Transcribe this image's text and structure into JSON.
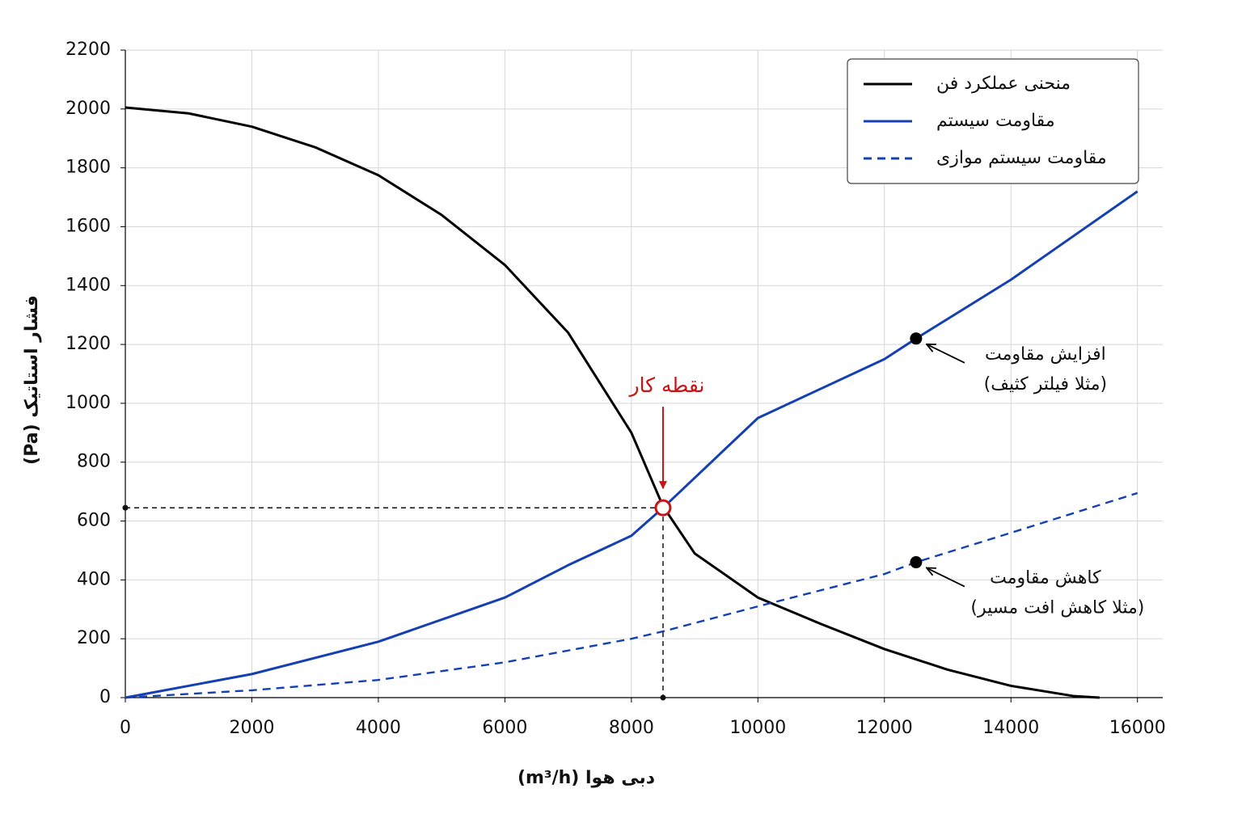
{
  "chart_data": {
    "type": "line",
    "xlabel": "دبی هوا (m³/h)",
    "ylabel": "فشار استاتیک (Pa)",
    "xlim": [
      0,
      16400
    ],
    "ylim": [
      0,
      2200
    ],
    "xticks": [
      0,
      2000,
      4000,
      6000,
      8000,
      10000,
      12000,
      14000,
      16000
    ],
    "yticks": [
      0,
      200,
      400,
      600,
      800,
      1000,
      1200,
      1400,
      1600,
      1800,
      2000,
      2200
    ],
    "grid": true,
    "legend": "upper right",
    "series": [
      {
        "name": "منحنی عملکرد فن",
        "color": "#000000",
        "style": "solid",
        "x": [
          0,
          1000,
          2000,
          3000,
          4000,
          5000,
          6000,
          7000,
          8000,
          8500,
          9000,
          10000,
          11000,
          12000,
          13000,
          14000,
          15000,
          15400
        ],
        "values": [
          2005,
          1985,
          1940,
          1870,
          1775,
          1640,
          1470,
          1240,
          900,
          650,
          490,
          340,
          250,
          165,
          95,
          40,
          5,
          0
        ]
      },
      {
        "name": "مقاومت سیستم",
        "color": "#1440b4",
        "style": "solid",
        "x": [
          0,
          2000,
          4000,
          6000,
          7000,
          8000,
          8500,
          10000,
          12000,
          12500,
          14000,
          16000
        ],
        "values": [
          0,
          80,
          190,
          340,
          450,
          550,
          645,
          950,
          1150,
          1220,
          1420,
          1720
        ]
      },
      {
        "name": "مقاومت سیستم موازی",
        "color": "#1440b4",
        "style": "dashed",
        "x": [
          0,
          2000,
          4000,
          6000,
          8000,
          8500,
          10000,
          12000,
          12500,
          14000,
          16000
        ],
        "values": [
          0,
          25,
          60,
          120,
          200,
          225,
          310,
          420,
          460,
          560,
          695
        ]
      }
    ],
    "operating_point": {
      "x": 8500,
      "y": 645,
      "label": "نقطه کار",
      "color": "#c81414"
    },
    "annotations": [
      {
        "x": 12500,
        "y": 1220,
        "lines": [
          "افزایش مقاومت",
          "(مثلا فیلتر کثیف)"
        ]
      },
      {
        "x": 12500,
        "y": 460,
        "lines": [
          "کاهش مقاومت",
          "(مثلا کاهش افت مسیر)"
        ]
      }
    ]
  }
}
